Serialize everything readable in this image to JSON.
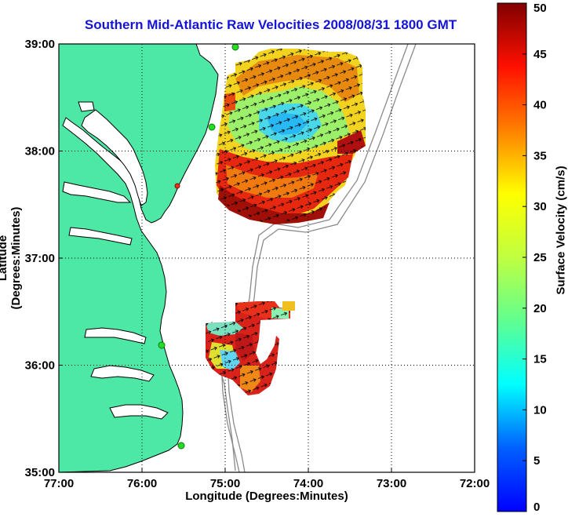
{
  "title": "Southern Mid-Atlantic Raw Velocities 2008/08/31 1800 GMT",
  "x_axis": {
    "label": "Longitude (Degrees:Minutes)",
    "ticks": [
      "77:00",
      "76:00",
      "75:00",
      "74:00",
      "73:00",
      "72:00"
    ]
  },
  "y_axis": {
    "label": "Latitude (Degrees:Minutes)",
    "ticks": [
      "39:00",
      "38:00",
      "37:00",
      "36:00",
      "35:00"
    ]
  },
  "colorbar": {
    "label": "Surface Velocity (cm/s)",
    "ticks": [
      "50",
      "45",
      "40",
      "35",
      "30",
      "25",
      "20",
      "15",
      "10",
      "5",
      "0"
    ],
    "min": 0,
    "max": 50
  },
  "colors": {
    "title": "#1414d8",
    "land": "#4ee8a6",
    "coastline": "#000000",
    "bathymetry": "#8a8a8a",
    "radar_site": "#22dd22"
  },
  "map_extent": {
    "lon": [
      -77,
      -72
    ],
    "lat": [
      35,
      39
    ]
  },
  "grid": true
}
